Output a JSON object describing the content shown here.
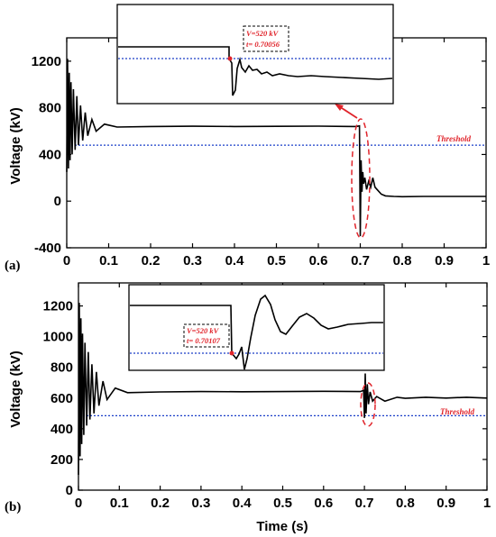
{
  "chart_data": [
    {
      "type": "line",
      "panel": "(a)",
      "xlabel": "",
      "ylabel": "Voltage (kV)",
      "xlim": [
        0,
        1
      ],
      "ylim": [
        -400,
        1400
      ],
      "xticks": [
        "0",
        "0.1",
        "0.2",
        "0.3",
        "0.4",
        "0.5",
        "0.6",
        "0.7",
        "0.8",
        "0.9",
        "1"
      ],
      "yticks": [
        "-400",
        "0",
        "400",
        "800",
        "1200"
      ],
      "threshold": {
        "value": 480,
        "label": "Threshold"
      },
      "fault_time": 0.7,
      "steady_before": 640,
      "steady_after": 40,
      "series": [
        {
          "x": [
            0,
            0.002,
            0.004,
            0.006,
            0.008,
            0.01,
            0.013,
            0.016,
            0.02,
            0.024,
            0.028,
            0.033,
            0.038,
            0.044,
            0.05,
            0.06,
            0.07,
            0.09,
            0.12,
            0.2,
            0.3,
            0.4,
            0.5,
            0.6,
            0.69,
            0.698,
            0.7,
            0.702,
            0.704,
            0.706,
            0.708,
            0.711,
            0.715,
            0.72,
            0.725,
            0.73,
            0.735,
            0.74,
            0.75,
            0.76,
            0.78,
            0.8,
            0.85,
            0.9,
            1.0
          ],
          "y": [
            250,
            1220,
            280,
            1100,
            350,
            1020,
            400,
            960,
            440,
            900,
            480,
            820,
            520,
            760,
            560,
            700,
            600,
            660,
            635,
            640,
            642,
            640,
            641,
            643,
            640,
            645,
            -300,
            350,
            80,
            250,
            150,
            200,
            100,
            170,
            120,
            200,
            120,
            100,
            60,
            45,
            40,
            38,
            40,
            40,
            40
          ]
        }
      ],
      "inset": {
        "annotation": [
          "V=520 kV",
          "t= 0.70056"
        ]
      }
    },
    {
      "type": "line",
      "panel": "(b)",
      "xlabel": "Time (s)",
      "ylabel": "Voltage (kV)",
      "xlim": [
        0,
        1
      ],
      "ylim": [
        0,
        1350
      ],
      "xticks": [
        "0",
        "0.1",
        "0.2",
        "0.3",
        "0.4",
        "0.5",
        "0.6",
        "0.7",
        "0.8",
        "0.9",
        "1"
      ],
      "yticks": [
        "0",
        "200",
        "400",
        "600",
        "800",
        "1000",
        "1200"
      ],
      "threshold": {
        "value": 485,
        "label": "Threshold"
      },
      "fault_time": 0.7,
      "steady_before": 640,
      "steady_after": 600,
      "series": [
        {
          "x": [
            0,
            0.002,
            0.004,
            0.006,
            0.008,
            0.01,
            0.013,
            0.016,
            0.02,
            0.024,
            0.028,
            0.033,
            0.038,
            0.044,
            0.05,
            0.06,
            0.07,
            0.09,
            0.12,
            0.2,
            0.3,
            0.4,
            0.5,
            0.6,
            0.69,
            0.698,
            0.7,
            0.702,
            0.704,
            0.707,
            0.71,
            0.714,
            0.72,
            0.73,
            0.75,
            0.78,
            0.8,
            0.85,
            0.9,
            0.95,
            1.0
          ],
          "y": [
            100,
            1220,
            220,
            1120,
            300,
            1020,
            360,
            960,
            420,
            900,
            460,
            820,
            500,
            770,
            550,
            710,
            590,
            665,
            635,
            640,
            642,
            641,
            642,
            644,
            642,
            650,
            470,
            760,
            500,
            690,
            560,
            640,
            580,
            610,
            580,
            605,
            598,
            605,
            600,
            605,
            600
          ]
        }
      ],
      "inset": {
        "annotation": [
          "V=520 kV",
          "t= 0.70107"
        ]
      }
    }
  ]
}
